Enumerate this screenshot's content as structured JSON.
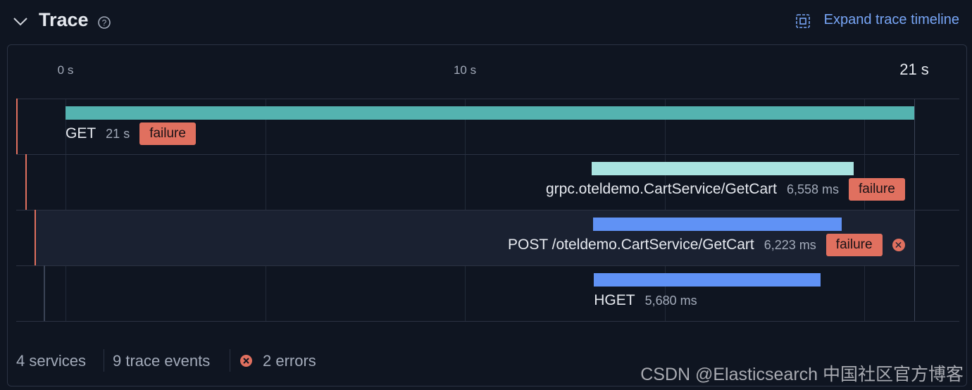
{
  "header": {
    "title": "Trace",
    "action": "Expand trace timeline"
  },
  "timeline": {
    "xlim": [
      0,
      21.25
    ],
    "xticks": [
      {
        "value": 0,
        "label": "0 s"
      },
      {
        "value": 10,
        "label": "10 s"
      },
      {
        "value": 21.25,
        "label": "21 s"
      }
    ],
    "grid": [
      0,
      5,
      10,
      15,
      20,
      21.25
    ],
    "spans": [
      {
        "name": "GET",
        "depth": 0,
        "start": 0,
        "duration": 21.25,
        "duration_label": "21 s",
        "status": "failure",
        "color": "#54b3b0",
        "error": false
      },
      {
        "name": "grpc.oteldemo.CartService/GetCart",
        "depth": 1,
        "start": 13.17,
        "duration": 6.558,
        "duration_label": "6,558 ms",
        "status": "failure",
        "color": "#a9e3e0",
        "error": false
      },
      {
        "name": "POST /oteldemo.CartService/GetCart",
        "depth": 2,
        "start": 13.21,
        "duration": 6.223,
        "duration_label": "6,223 ms",
        "status": "failure",
        "color": "#6092f5",
        "error": true
      },
      {
        "name": "HGET",
        "depth": 3,
        "start": 13.23,
        "duration": 5.68,
        "duration_label": "5,680 ms",
        "status": null,
        "color": "#6092f5",
        "error": false
      }
    ]
  },
  "footer": {
    "services": "4 services",
    "events": "9 trace events",
    "errors": "2 errors"
  },
  "watermark": "CSDN @Elasticsearch 中国社区官方博客"
}
